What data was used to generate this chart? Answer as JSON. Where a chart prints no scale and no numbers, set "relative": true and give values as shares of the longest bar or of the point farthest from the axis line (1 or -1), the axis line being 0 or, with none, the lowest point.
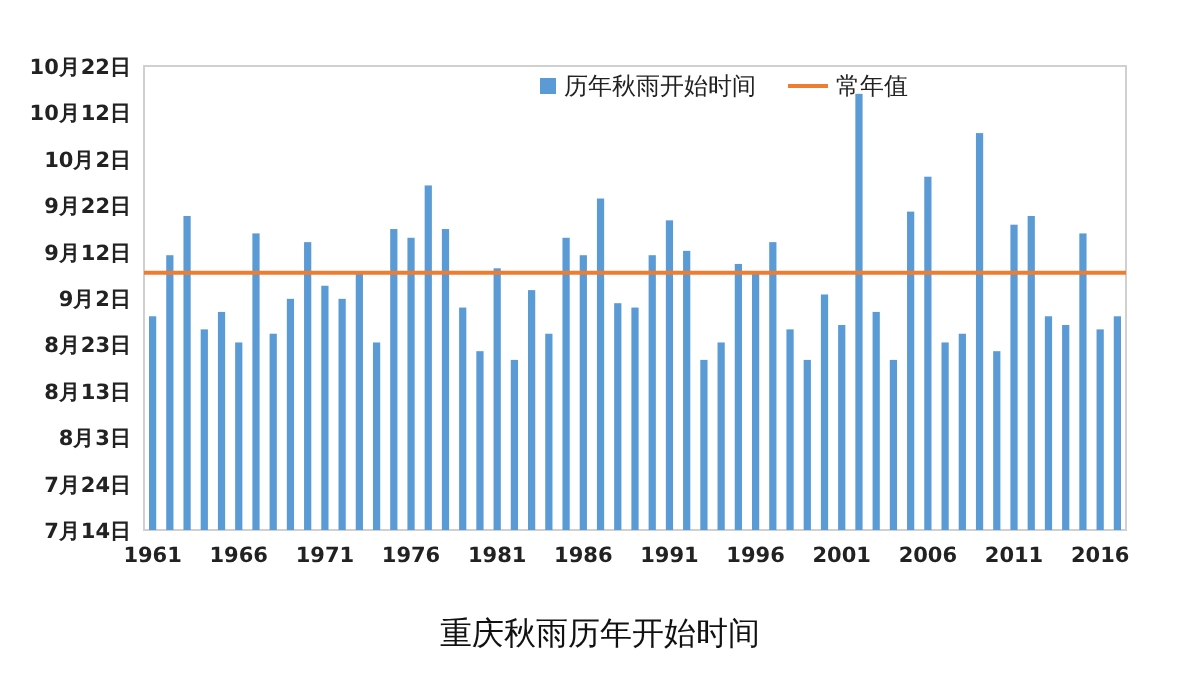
{
  "chart_data": {
    "type": "bar",
    "title": "重庆秋雨历年开始时间",
    "relative": true,
    "categories": [
      "1961",
      null,
      null,
      null,
      null,
      "1966",
      null,
      null,
      null,
      null,
      "1971",
      null,
      null,
      null,
      null,
      "1976",
      null,
      null,
      null,
      null,
      "1981",
      null,
      null,
      null,
      null,
      "1986",
      null,
      null,
      null,
      null,
      "1991",
      null,
      null,
      null,
      null,
      "1996",
      null,
      null,
      null,
      null,
      "2001",
      null,
      null,
      null,
      null,
      "2006",
      null,
      null,
      null,
      null,
      "2011",
      null,
      null,
      null,
      null,
      "2016",
      null
    ],
    "series": [
      {
        "name": "历年秋雨开始时间",
        "color": "#5b9bd5",
        "values": [
          0.49,
          0.63,
          0.72,
          0.46,
          0.5,
          0.43,
          0.68,
          0.45,
          0.53,
          0.66,
          0.56,
          0.53,
          0.59,
          0.43,
          0.69,
          0.67,
          0.79,
          0.69,
          0.51,
          0.41,
          0.6,
          0.39,
          0.55,
          0.45,
          0.67,
          0.63,
          0.76,
          0.52,
          0.51,
          0.63,
          0.71,
          0.64,
          0.39,
          0.43,
          0.61,
          0.59,
          0.66,
          0.46,
          0.39,
          0.54,
          0.47,
          1,
          0.5,
          0.39,
          0.73,
          0.81,
          0.43,
          0.45,
          0.91,
          0.41,
          0.7,
          0.72,
          0.49,
          0.47,
          0.68,
          0.46,
          0.49
        ]
      }
    ],
    "ref_lines": [
      {
        "axis": "y",
        "value": 0.59,
        "label": "常年值",
        "color": "#ed7d31"
      }
    ],
    "annotations": [
      "10月22日",
      "10月12日",
      "10月2日",
      "9月22日",
      "9月12日",
      "9月2日",
      "8月23日",
      "8月13日",
      "8月3日",
      "7月24日",
      "7月14日"
    ],
    "legend": "top"
  }
}
